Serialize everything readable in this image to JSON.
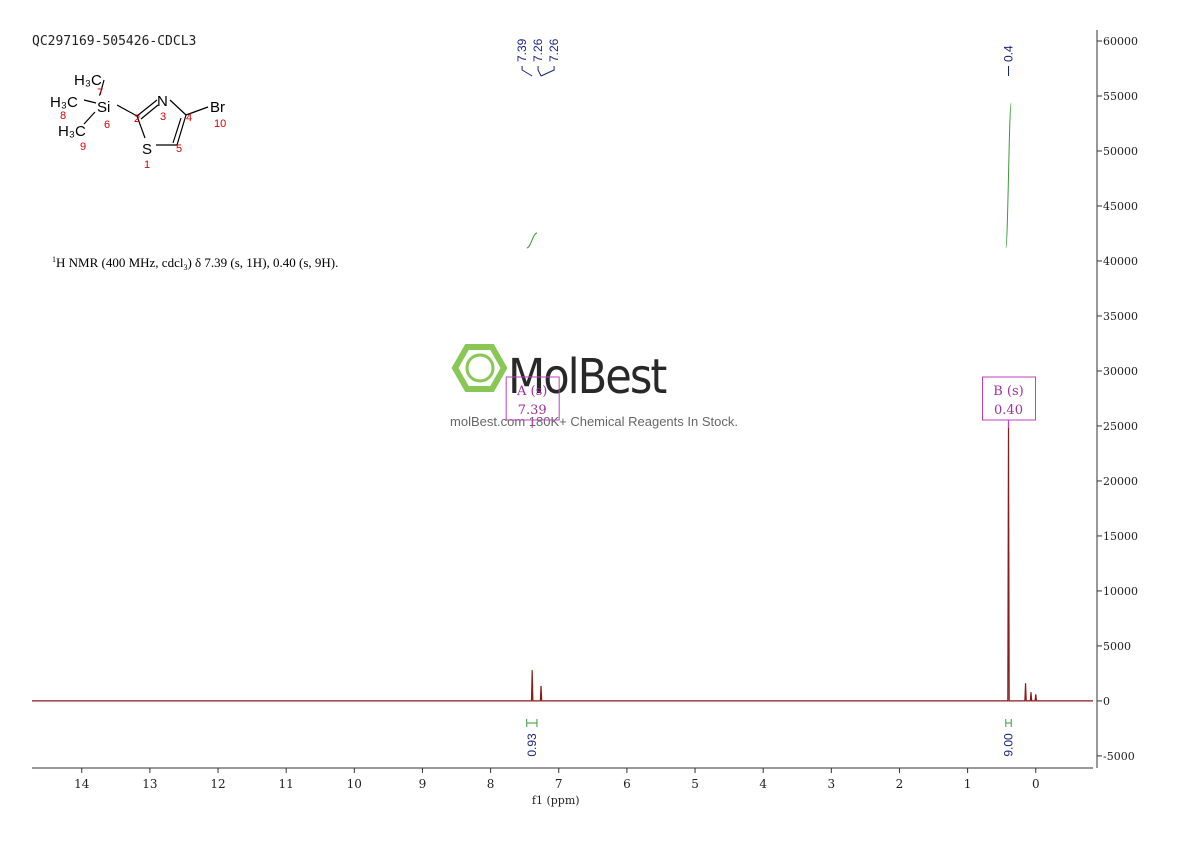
{
  "chart_data": {
    "type": "line",
    "title": "QC297169-505426-CDCL3",
    "description": {
      "sup": "1",
      "text": "H NMR (400 MHz, cdcl",
      "sub": "3",
      "rest": ") δ 7.39 (s, 1H), 0.40 (s, 9H)."
    },
    "x_label": "f1 (ppm)",
    "x": [
      14.73,
      7.4,
      7.39,
      7.38,
      7.27,
      7.26,
      7.25,
      0.41,
      0.4,
      0.39,
      0.16,
      0.15,
      0.14,
      0.08,
      0.07,
      0.06,
      0.01,
      0.0,
      -0.01,
      -0.84
    ],
    "series": [
      {
        "color": "#8b1a1a",
        "values": [
          0,
          0,
          2800,
          0,
          0,
          1360,
          0,
          0,
          25500,
          0,
          0,
          1600,
          0,
          0,
          800,
          0,
          0,
          600,
          0,
          0
        ]
      }
    ],
    "xlim": [
      14.73,
      -0.84
    ],
    "xticks": [
      14,
      13,
      12,
      11,
      10,
      9,
      8,
      7,
      6,
      5,
      4,
      3,
      2,
      1,
      0
    ],
    "ylim": [
      -6100,
      61000
    ],
    "yticks": [
      -5000,
      0,
      5000,
      10000,
      15000,
      20000,
      25000,
      30000,
      35000,
      40000,
      45000,
      50000,
      55000,
      60000
    ],
    "peak_labels": [
      7.39,
      7.26,
      7.26,
      0.4
    ],
    "integrals": [
      {
        "range": [
          7.47,
          7.32
        ],
        "value": 0.93
      },
      {
        "range": [
          0.44,
          0.36
        ],
        "value": 9.0,
        "label": "9.00"
      }
    ],
    "multiplets": [
      {
        "name": "A (s)",
        "shift": 7.39
      },
      {
        "name": "B (s)",
        "shift": 0.4,
        "label": "0.40"
      }
    ]
  },
  "molecule": {
    "atoms": [
      "H₃C",
      "7",
      "H₃C",
      "8",
      "Si",
      "6",
      "H₃C",
      "9",
      "2",
      "N",
      "3",
      "4",
      "Br",
      "10",
      "5",
      "S",
      "1"
    ]
  },
  "watermark": {
    "logo": "MolBest",
    "text": "molBest.com 180K+ Chemical Reagents In Stock."
  }
}
